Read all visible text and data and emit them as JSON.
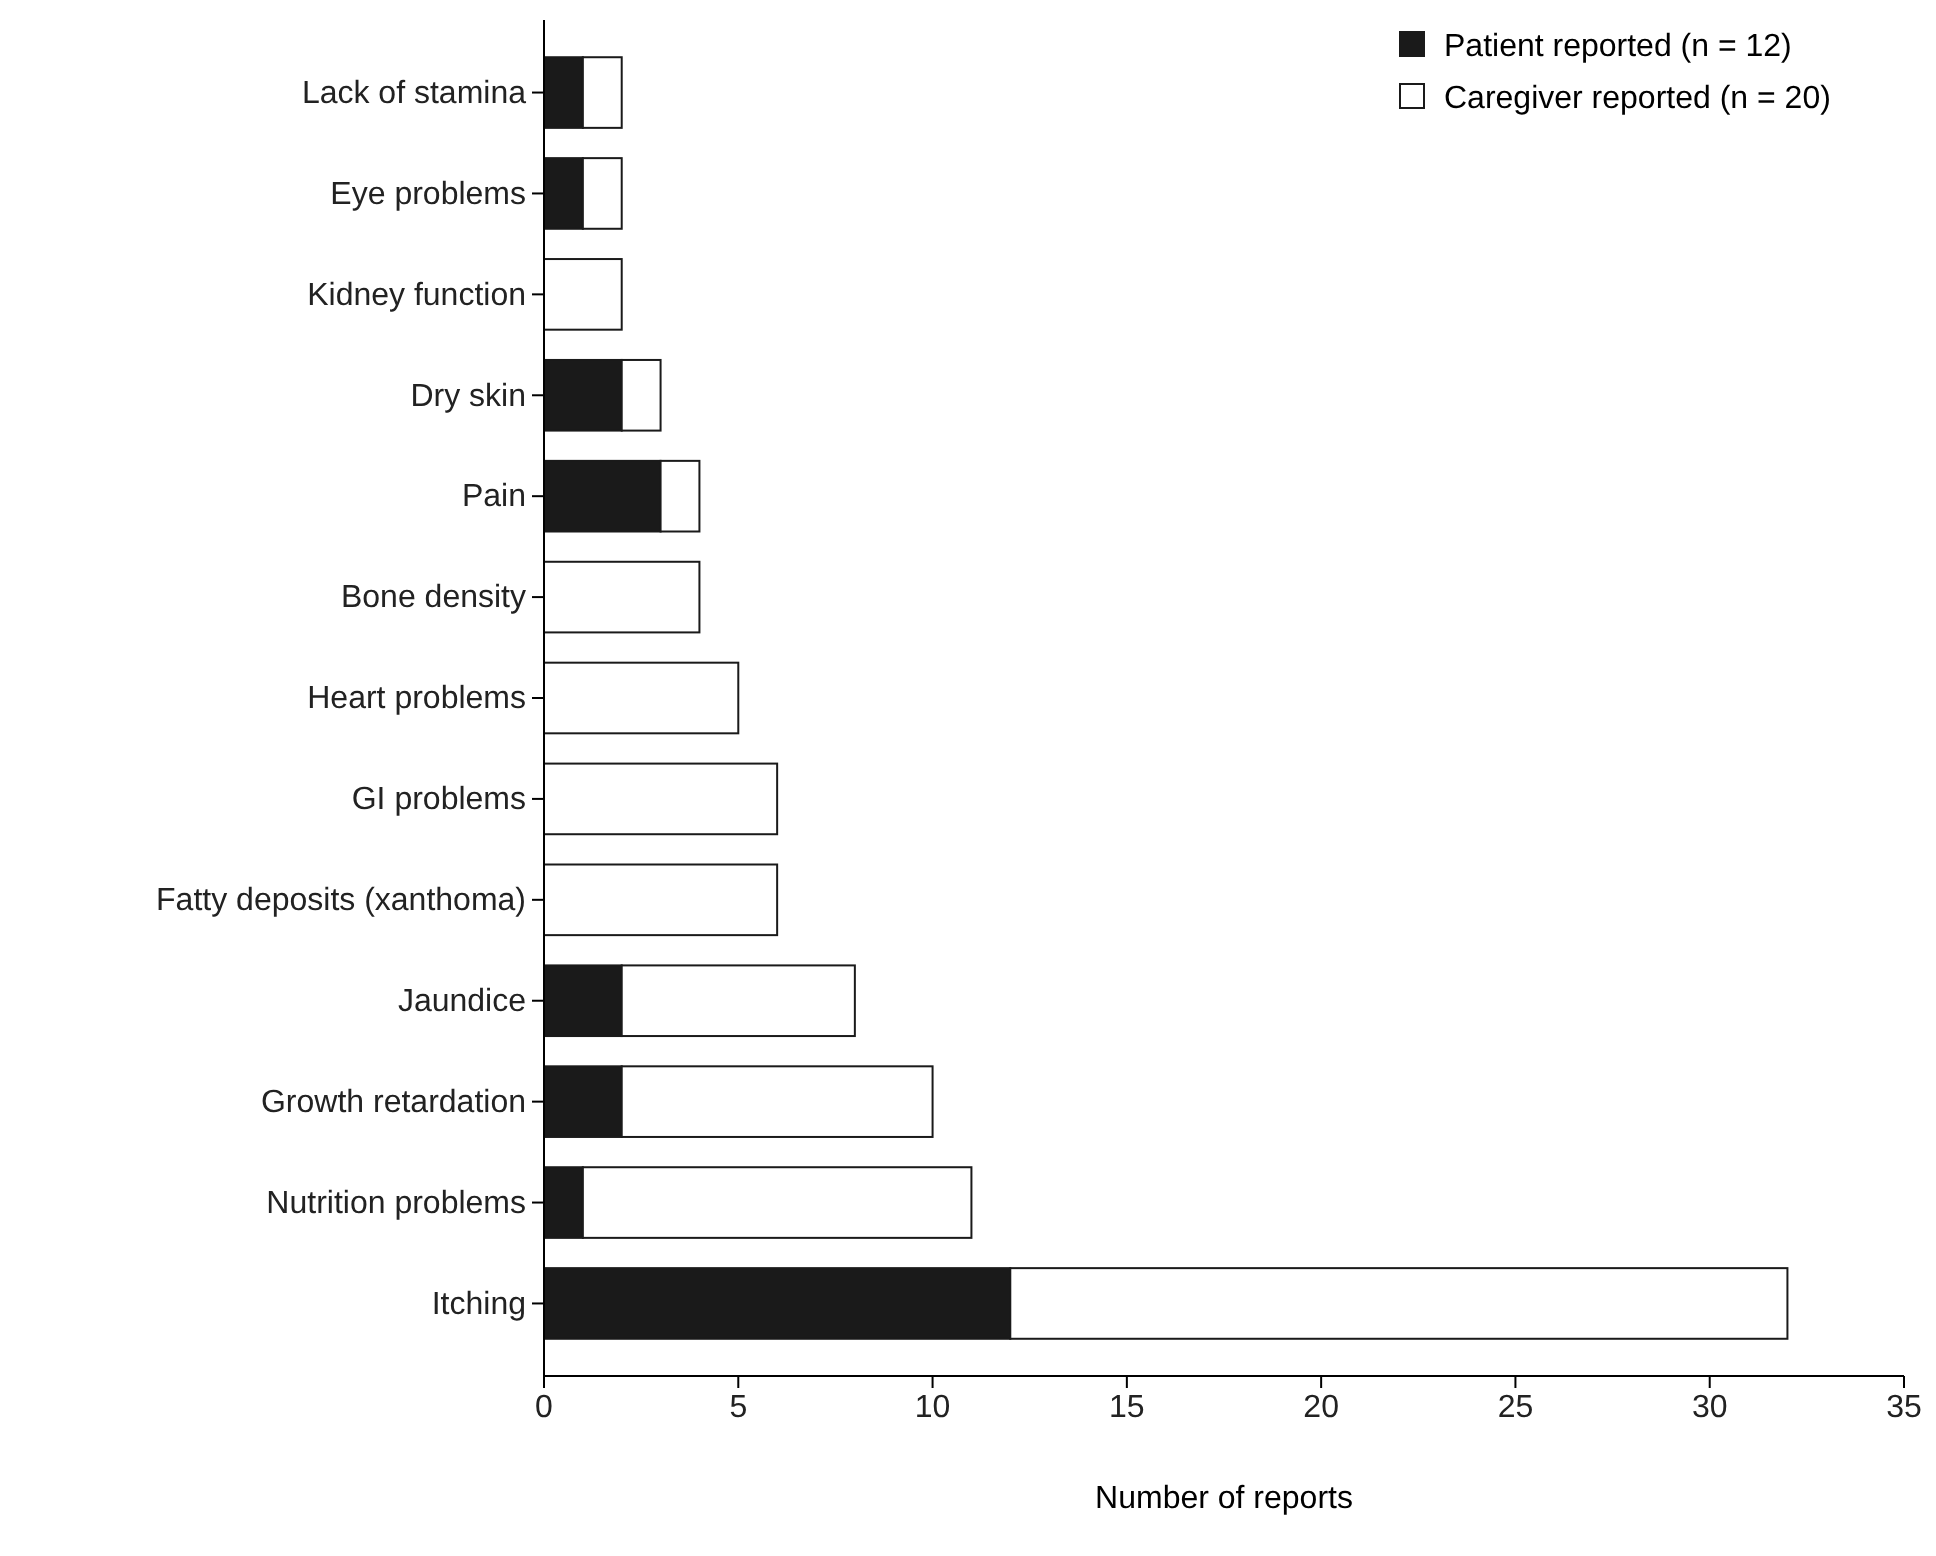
{
  "chart_data": {
    "type": "bar",
    "orientation": "horizontal",
    "stacked": true,
    "xlabel": "Number of reports",
    "categories": [
      "Lack of stamina",
      "Eye problems",
      "Kidney function",
      "Dry skin",
      "Pain",
      "Bone density",
      "Heart problems",
      "GI problems",
      "Fatty deposits (xanthoma)",
      "Jaundice",
      "Growth retardation",
      "Nutrition problems",
      "Itching"
    ],
    "series": [
      {
        "name": "Patient reported (n = 12)",
        "color": "#1a1a1a",
        "values": [
          1,
          1,
          0,
          2,
          3,
          0,
          0,
          0,
          0,
          2,
          2,
          1,
          12
        ]
      },
      {
        "name": "Caregiver reported (n = 20)",
        "color": "#ffffff",
        "values": [
          1,
          1,
          2,
          1,
          1,
          4,
          5,
          6,
          6,
          6,
          8,
          10,
          20
        ]
      }
    ],
    "xlim": [
      0,
      35
    ],
    "xticks": [
      0,
      5,
      10,
      15,
      20,
      25,
      30,
      35
    ],
    "legend": "top right",
    "grid": false
  }
}
